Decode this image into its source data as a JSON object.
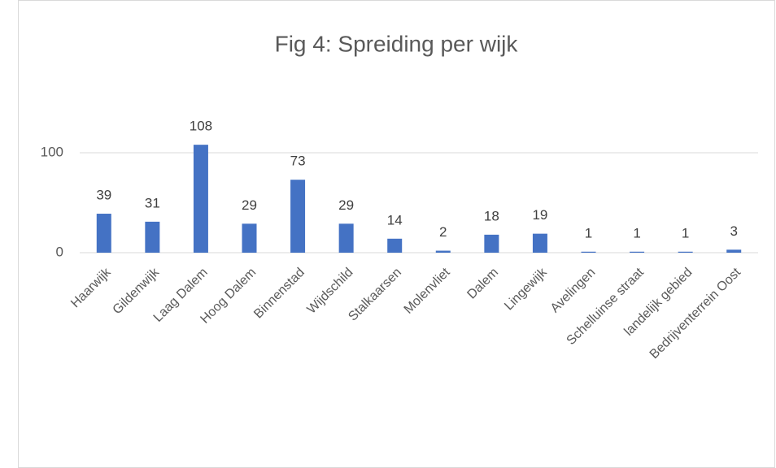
{
  "chart_data": {
    "type": "bar",
    "title": "Fig 4: Spreiding per wijk",
    "categories": [
      "Haarwijk",
      "Gildenwijk",
      "Laag Dalem",
      "Hoog Dalem",
      "Binnenstad",
      "Wijdschild",
      "Stalkaarsen",
      "Molenvliet",
      "Dalem",
      "Lingewijk",
      "Avelingen",
      "Schelluinse straat",
      "landelijk gebied",
      "Bedrijventerrein Oost"
    ],
    "values": [
      39,
      31,
      108,
      29,
      73,
      29,
      14,
      2,
      18,
      19,
      1,
      1,
      1,
      3
    ],
    "color": "#4472c4",
    "ylim": [
      0,
      120
    ],
    "yticks": [
      0,
      100
    ],
    "grid": true
  }
}
